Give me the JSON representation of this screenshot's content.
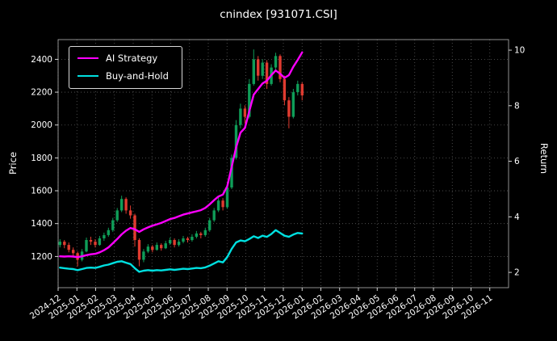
{
  "chart_data": {
    "type": "candlestick+line",
    "title": "cnindex [931071.CSI]",
    "ylabel_left": "Price",
    "ylabel_right": "Return",
    "background": "#000000",
    "grid": true,
    "grid_color": "#5a5a5a",
    "x_range_months": [
      0,
      24
    ],
    "y_left_range": [
      1010,
      2520
    ],
    "y_right_range": [
      1.45,
      10.38
    ],
    "y_left_ticks": [
      1200,
      1400,
      1600,
      1800,
      2000,
      2200,
      2400
    ],
    "y_right_ticks": [
      2,
      4,
      6,
      8,
      10
    ],
    "x_tick_labels": [
      "2024-12",
      "2025-01",
      "2025-02",
      "2025-03",
      "2025-04",
      "2025-05",
      "2025-06",
      "2025-07",
      "2025-08",
      "2025-09",
      "2025-10",
      "2025-11",
      "2025-12",
      "2026-01",
      "2026-02",
      "2026-03",
      "2026-04",
      "2026-05",
      "2026-06",
      "2026-07",
      "2026-08",
      "2026-09",
      "2026-10",
      "2026-11"
    ],
    "legend": {
      "position": "upper-left",
      "entries": [
        "AI Strategy",
        "Buy-and-Hold"
      ]
    },
    "candles": {
      "up_color": "#0f9d58",
      "down_color": "#e03b30",
      "start_month": 0.1,
      "span_months": 12.9,
      "ohlc": [
        [
          1270,
          1305,
          1255,
          1290
        ],
        [
          1290,
          1300,
          1250,
          1270
        ],
        [
          1270,
          1285,
          1225,
          1240
        ],
        [
          1240,
          1255,
          1200,
          1220
        ],
        [
          1220,
          1230,
          1140,
          1180
        ],
        [
          1180,
          1245,
          1170,
          1230
        ],
        [
          1230,
          1315,
          1225,
          1300
        ],
        [
          1300,
          1320,
          1270,
          1290
        ],
        [
          1290,
          1305,
          1255,
          1270
        ],
        [
          1270,
          1325,
          1265,
          1310
        ],
        [
          1310,
          1345,
          1295,
          1330
        ],
        [
          1330,
          1375,
          1320,
          1360
        ],
        [
          1360,
          1435,
          1350,
          1420
        ],
        [
          1420,
          1495,
          1410,
          1480
        ],
        [
          1480,
          1570,
          1470,
          1550
        ],
        [
          1550,
          1560,
          1460,
          1480
        ],
        [
          1480,
          1510,
          1430,
          1450
        ],
        [
          1450,
          1460,
          1260,
          1300
        ],
        [
          1300,
          1310,
          1140,
          1180
        ],
        [
          1180,
          1245,
          1165,
          1230
        ],
        [
          1230,
          1275,
          1220,
          1260
        ],
        [
          1260,
          1270,
          1225,
          1240
        ],
        [
          1240,
          1285,
          1235,
          1270
        ],
        [
          1270,
          1280,
          1235,
          1250
        ],
        [
          1250,
          1295,
          1245,
          1280
        ],
        [
          1280,
          1315,
          1270,
          1300
        ],
        [
          1300,
          1310,
          1255,
          1270
        ],
        [
          1270,
          1305,
          1260,
          1290
        ],
        [
          1290,
          1325,
          1280,
          1310
        ],
        [
          1310,
          1320,
          1285,
          1300
        ],
        [
          1300,
          1335,
          1290,
          1320
        ],
        [
          1320,
          1355,
          1310,
          1340
        ],
        [
          1340,
          1350,
          1310,
          1330
        ],
        [
          1330,
          1375,
          1320,
          1360
        ],
        [
          1360,
          1435,
          1350,
          1420
        ],
        [
          1420,
          1495,
          1410,
          1480
        ],
        [
          1480,
          1560,
          1470,
          1540
        ],
        [
          1540,
          1555,
          1480,
          1500
        ],
        [
          1500,
          1640,
          1490,
          1620
        ],
        [
          1620,
          1820,
          1610,
          1800
        ],
        [
          1800,
          2030,
          1790,
          2000
        ],
        [
          2000,
          2130,
          1980,
          2100
        ],
        [
          2100,
          2120,
          2010,
          2050
        ],
        [
          2050,
          2280,
          2040,
          2250
        ],
        [
          2250,
          2460,
          2240,
          2400
        ],
        [
          2400,
          2420,
          2270,
          2300
        ],
        [
          2300,
          2400,
          2280,
          2380
        ],
        [
          2380,
          2395,
          2220,
          2250
        ],
        [
          2250,
          2370,
          2240,
          2350
        ],
        [
          2350,
          2440,
          2330,
          2420
        ],
        [
          2420,
          2430,
          2260,
          2280
        ],
        [
          2280,
          2300,
          2120,
          2150
        ],
        [
          2150,
          2170,
          1980,
          2050
        ],
        [
          2050,
          2220,
          2040,
          2200
        ],
        [
          2200,
          2270,
          2180,
          2250
        ],
        [
          2250,
          2260,
          2150,
          2180
        ]
      ]
    },
    "series": [
      {
        "name": "AI Strategy",
        "color": "#ff00ff",
        "axis": "right",
        "values": [
          2.58,
          2.57,
          2.58,
          2.57,
          2.55,
          2.58,
          2.62,
          2.65,
          2.67,
          2.72,
          2.8,
          2.9,
          3.05,
          3.2,
          3.37,
          3.5,
          3.6,
          3.55,
          3.46,
          3.55,
          3.62,
          3.68,
          3.73,
          3.78,
          3.85,
          3.92,
          3.96,
          4.02,
          4.08,
          4.12,
          4.16,
          4.2,
          4.24,
          4.32,
          4.45,
          4.6,
          4.73,
          4.8,
          5.1,
          5.8,
          6.5,
          7.03,
          7.2,
          7.8,
          8.4,
          8.6,
          8.8,
          8.9,
          9.1,
          9.27,
          9.15,
          9.0,
          9.1,
          9.4,
          9.65,
          9.92
        ]
      },
      {
        "name": "Buy-and-Hold",
        "color": "#00e0e0",
        "axis": "right",
        "values": [
          2.17,
          2.15,
          2.13,
          2.12,
          2.08,
          2.12,
          2.16,
          2.17,
          2.16,
          2.2,
          2.25,
          2.28,
          2.33,
          2.38,
          2.4,
          2.35,
          2.3,
          2.15,
          2.02,
          2.06,
          2.08,
          2.06,
          2.08,
          2.07,
          2.09,
          2.11,
          2.09,
          2.11,
          2.13,
          2.12,
          2.14,
          2.16,
          2.15,
          2.18,
          2.24,
          2.32,
          2.4,
          2.36,
          2.55,
          2.85,
          3.08,
          3.15,
          3.12,
          3.2,
          3.3,
          3.24,
          3.32,
          3.28,
          3.38,
          3.52,
          3.42,
          3.32,
          3.28,
          3.36,
          3.42,
          3.4
        ]
      }
    ]
  }
}
